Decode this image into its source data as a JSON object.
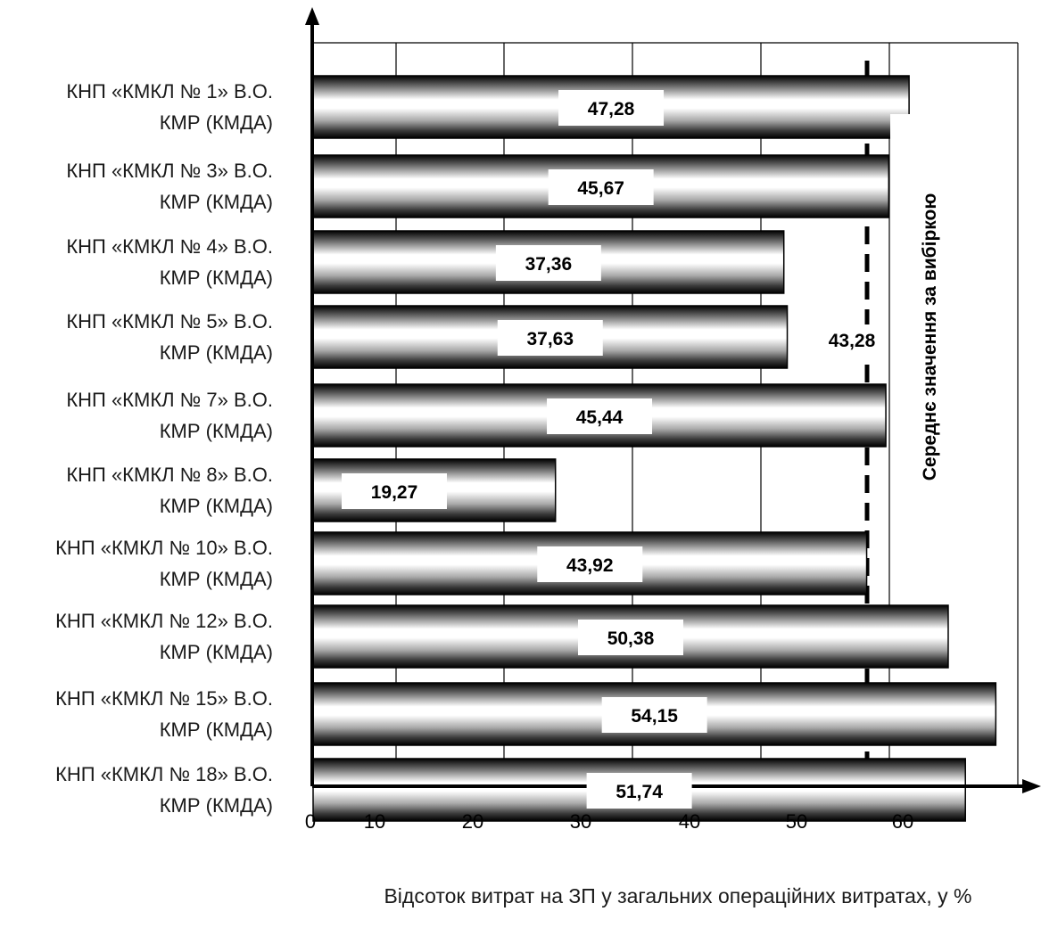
{
  "chart_data": {
    "type": "bar",
    "orientation": "horizontal",
    "categories": [
      [
        "КНП «КМКЛ № 1» В.О.",
        "КМР (КМДА)"
      ],
      [
        "КНП «КМКЛ № 3» В.О.",
        "КМР (КМДА)"
      ],
      [
        "КНП «КМКЛ № 4» В.О.",
        "КМР (КМДА)"
      ],
      [
        "КНП «КМКЛ № 5» В.О.",
        "КМР (КМДА)"
      ],
      [
        "КНП «КМКЛ № 7» В.О.",
        "КМР (КМДА)"
      ],
      [
        "КНП «КМКЛ № 8» В.О.",
        "КМР (КМДА)"
      ],
      [
        "КНП «КМКЛ № 10» В.О.",
        "КМР (КМДА)"
      ],
      [
        "КНП «КМКЛ № 12» В.О.",
        "КМР (КМДА)"
      ],
      [
        "КНП «КМКЛ № 15» В.О.",
        "КМР (КМДА)"
      ],
      [
        "КНП «КМКЛ № 18» В.О.",
        "КМР (КМДА)"
      ]
    ],
    "values": [
      47.28,
      45.67,
      37.36,
      37.63,
      45.44,
      19.27,
      43.92,
      50.38,
      54.15,
      51.74
    ],
    "value_labels": [
      "47,28",
      "45,67",
      "37,36",
      "37,63",
      "45,44",
      "19,27",
      "43,92",
      "50,38",
      "54,15",
      "51,74"
    ],
    "x_ticks": [
      "0",
      "10",
      "20",
      "30",
      "40",
      "50",
      "60"
    ],
    "reference_line": {
      "value": 43.28,
      "label": "43,28",
      "caption": "Середнє значення за вибіркою",
      "style": "dashed"
    },
    "xlabel": "Відсоток витрат на ЗП у загальних операційних витратах, у %",
    "ylabel": "",
    "grid": "vertical",
    "bar_fill": "metallic gradient",
    "colors": {
      "bar_dark": "#000000",
      "bar_light": "#ffffff",
      "axis": "#000000"
    }
  }
}
